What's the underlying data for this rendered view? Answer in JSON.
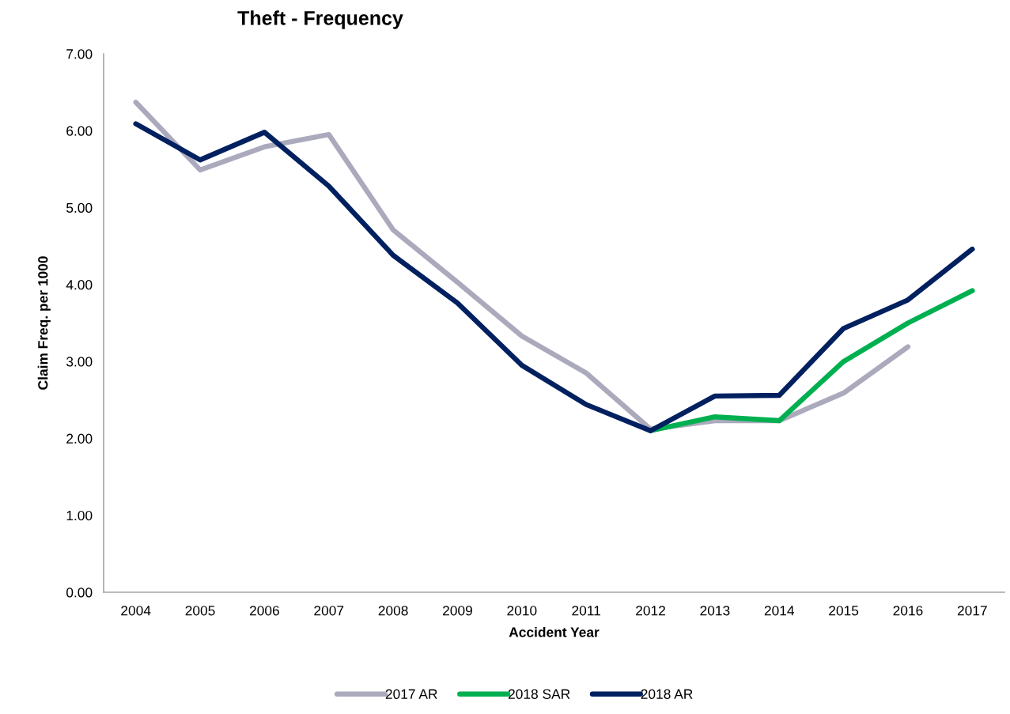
{
  "chart_data": {
    "type": "line",
    "title": "Theft - Frequency",
    "xlabel": "Accident Year",
    "ylabel": "Claim Freq. per 1000",
    "categories": [
      "2004",
      "2005",
      "2006",
      "2007",
      "2008",
      "2009",
      "2010",
      "2011",
      "2012",
      "2013",
      "2014",
      "2015",
      "2016",
      "2017"
    ],
    "series": [
      {
        "name": "2017 AR",
        "color": "#abaabd",
        "values": [
          6.37,
          5.49,
          5.79,
          5.95,
          4.71,
          4.03,
          3.33,
          2.85,
          2.12,
          2.23,
          2.23,
          2.59,
          3.19,
          null
        ]
      },
      {
        "name": "2018 SAR",
        "color": "#00b050",
        "values": [
          null,
          null,
          null,
          null,
          null,
          null,
          null,
          null,
          2.1,
          2.28,
          2.23,
          3.0,
          3.5,
          3.92
        ]
      },
      {
        "name": "2018 AR",
        "color": "#002060",
        "values": [
          6.09,
          5.62,
          5.98,
          5.28,
          4.38,
          3.76,
          2.95,
          2.44,
          2.1,
          2.55,
          2.56,
          3.43,
          3.8,
          4.46
        ]
      }
    ],
    "ylim": [
      0,
      7
    ],
    "yticks": [
      {
        "value": 0,
        "label": "0.00"
      },
      {
        "value": 1,
        "label": "1.00"
      },
      {
        "value": 2,
        "label": "2.00"
      },
      {
        "value": 3,
        "label": "3.00"
      },
      {
        "value": 4,
        "label": "4.00"
      },
      {
        "value": 5,
        "label": "5.00"
      },
      {
        "value": 6,
        "label": "6.00"
      },
      {
        "value": 7,
        "label": "7.00"
      }
    ],
    "legend": "bottom",
    "line_style": "solid",
    "marker": "none"
  }
}
